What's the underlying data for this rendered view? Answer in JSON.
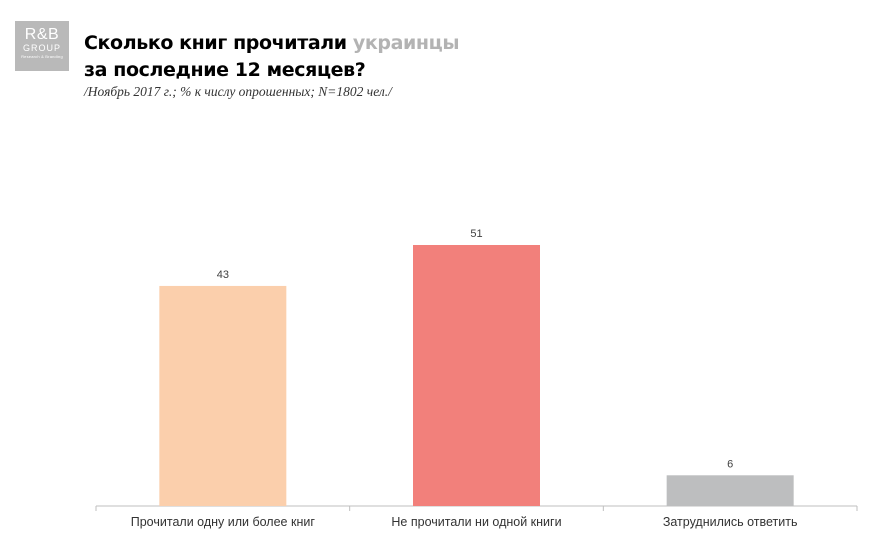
{
  "logo": {
    "main": "R&B",
    "sub": "GROUP",
    "tag": "Research & Branding"
  },
  "title": {
    "part1": "Сколько книг прочитали ",
    "accent": "украинцы",
    "line2": "за последние 12 месяцев?"
  },
  "subtitle": "/Ноябрь 2017 г.; % к числу опрошенных; N=1802 чел./",
  "colors": {
    "title_accent": "#b3b3b3",
    "logo_bg": "#b9b9b9"
  },
  "chart_data": {
    "type": "bar",
    "categories": [
      "Прочитали одну или более книг",
      "Не прочитали ни одной книги",
      "Затруднились ответить"
    ],
    "values": [
      43,
      51,
      6
    ],
    "colors": [
      "#fbcfac",
      "#f2807b",
      "#bdbebf"
    ],
    "data_labels": [
      "43",
      "51",
      "6"
    ],
    "xlabel": "",
    "ylabel": "",
    "ylim": [
      0,
      51
    ],
    "grid": false,
    "legend": "none"
  }
}
